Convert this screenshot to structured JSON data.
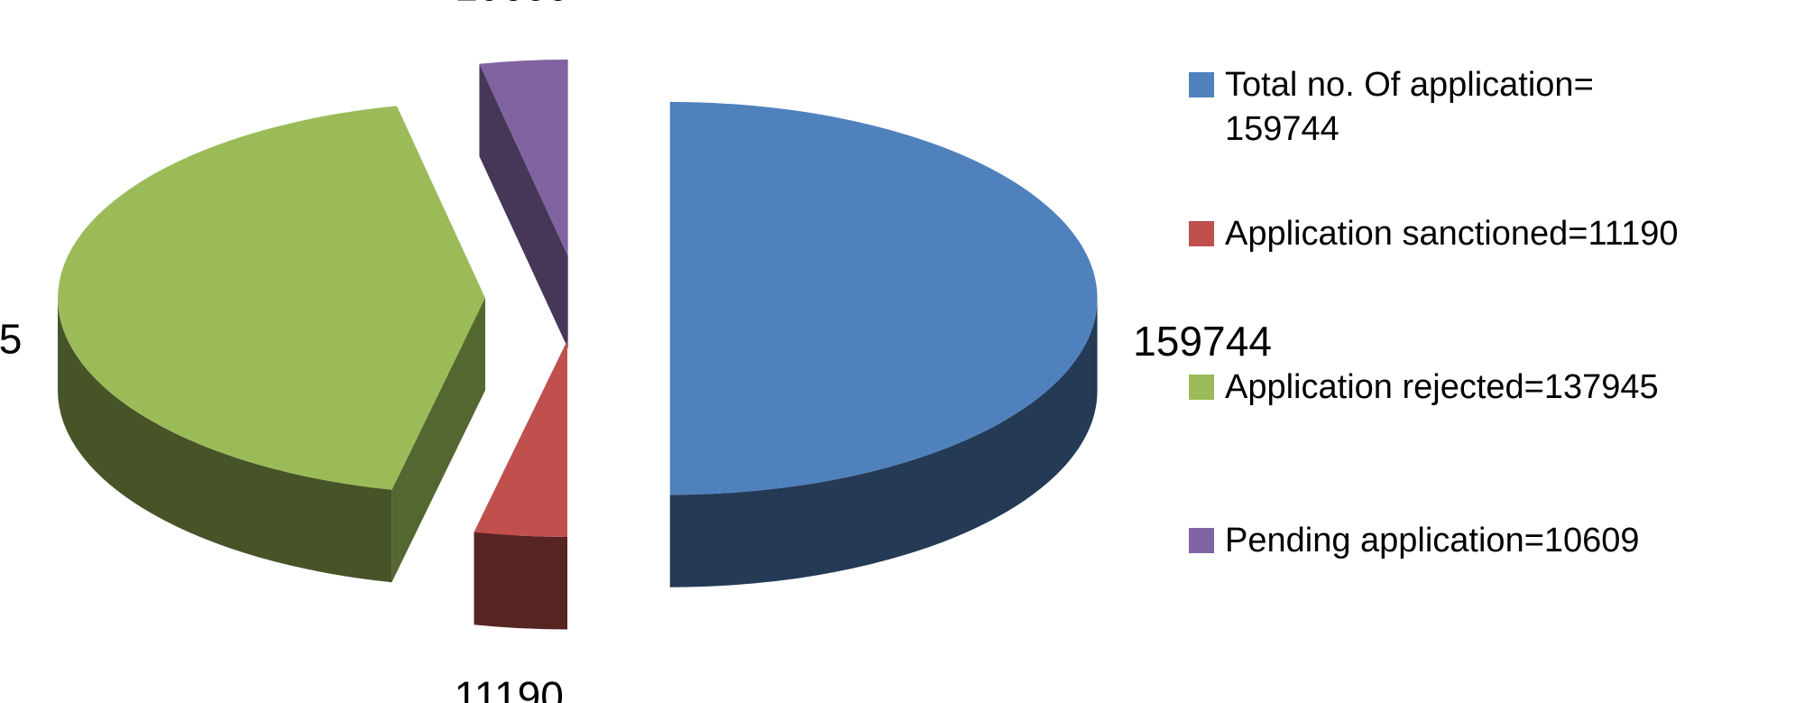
{
  "chart_data": {
    "type": "pie",
    "categories": [
      "Total no. Of application= 159744",
      "Application sanctioned=11190",
      "Application rejected=137945",
      "Pending application=10609"
    ],
    "values": [
      159744,
      11190,
      137945,
      10609
    ],
    "colors": [
      "#4f81bd",
      "#c0504d",
      "#9bbb59",
      "#8064a2"
    ],
    "legend": "right"
  }
}
